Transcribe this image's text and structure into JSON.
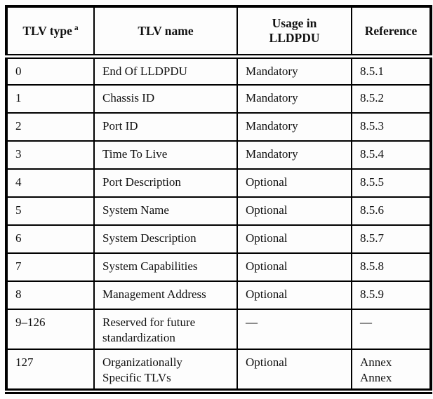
{
  "table": {
    "title_semantic": "TLV type table",
    "colors": {
      "border": "#000000",
      "text": "#111111",
      "background": "#fdfdfd"
    },
    "headers": {
      "tlv_type": {
        "text": "TLV type",
        "sup": "a"
      },
      "tlv_name": {
        "text": "TLV name"
      },
      "usage": {
        "text": "Usage in\nLLDPDU"
      },
      "reference": {
        "text": "Reference"
      }
    },
    "rows": [
      {
        "type": "0",
        "name": "End Of LLDPDU",
        "usage": "Mandatory",
        "reference": "8.5.1"
      },
      {
        "type": "1",
        "name": "Chassis ID",
        "usage": "Mandatory",
        "reference": "8.5.2"
      },
      {
        "type": "2",
        "name": "Port ID",
        "usage": "Mandatory",
        "reference": "8.5.3"
      },
      {
        "type": "3",
        "name": "Time To Live",
        "usage": "Mandatory",
        "reference": "8.5.4"
      },
      {
        "type": "4",
        "name": "Port Description",
        "usage": "Optional",
        "reference": "8.5.5"
      },
      {
        "type": "5",
        "name": "System Name",
        "usage": "Optional",
        "reference": "8.5.6"
      },
      {
        "type": "6",
        "name": "System Description",
        "usage": "Optional",
        "reference": "8.5.7"
      },
      {
        "type": "7",
        "name": "System Capabilities",
        "usage": "Optional",
        "reference": "8.5.8"
      },
      {
        "type": "8",
        "name": "Management Address",
        "usage": "Optional",
        "reference": "8.5.9"
      },
      {
        "type": "9–126",
        "name": "Reserved for future\nstandardization",
        "usage": "—",
        "reference": "—"
      },
      {
        "type": "127",
        "name": "Organizationally\nSpecific TLVs",
        "usage": "Optional",
        "reference": "Annex\nAnnex"
      }
    ]
  }
}
